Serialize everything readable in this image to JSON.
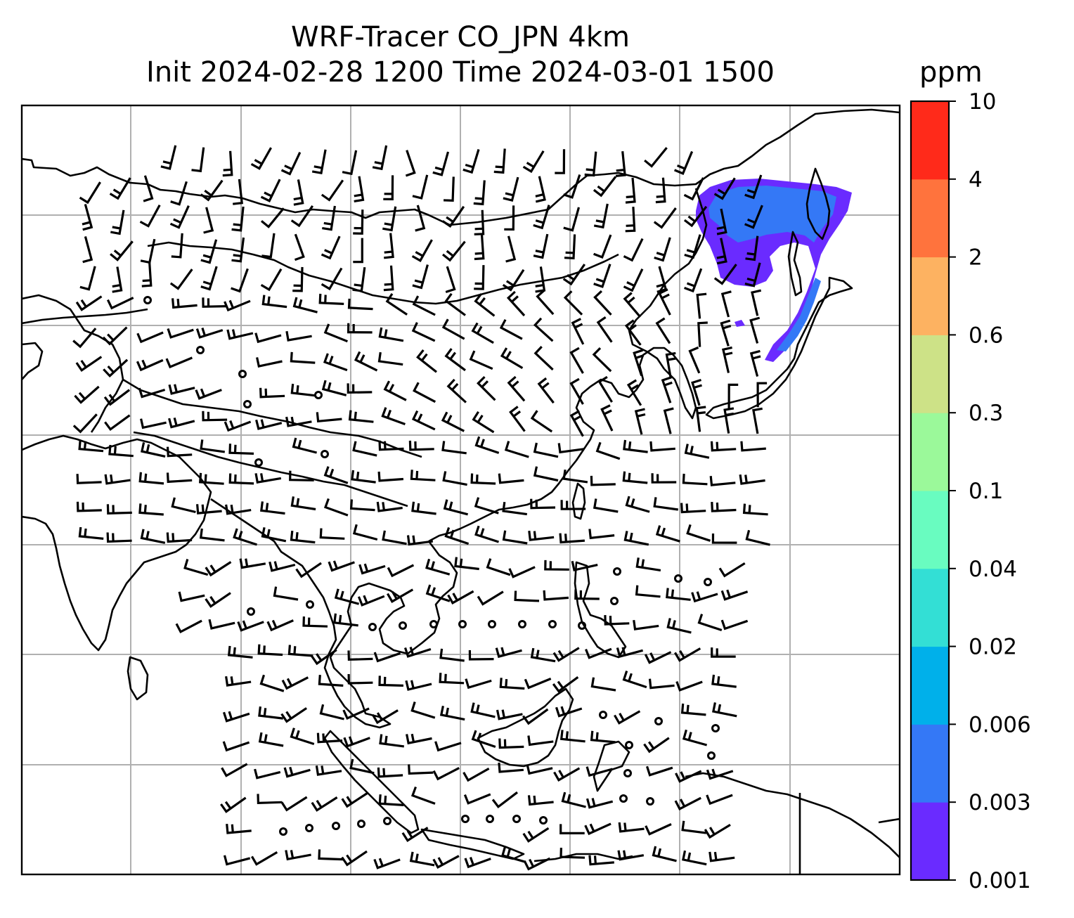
{
  "title": {
    "line1": "WRF-Tracer CO_JPN 4km",
    "line2": "Init 2024-02-28 1200 Time 2024-03-01 1500"
  },
  "colorbar": {
    "label": "ppm",
    "ticks": [
      "0.001",
      "0.003",
      "0.006",
      "0.02",
      "0.04",
      "0.1",
      "0.3",
      "0.6",
      "2",
      "4",
      "10"
    ],
    "colors": [
      "#6a2bff",
      "#3478f6",
      "#00b0ea",
      "#33dfd5",
      "#69fcc0",
      "#9bf99a",
      "#cde287",
      "#fdb261",
      "#ff733d",
      "#ff2a1a"
    ]
  },
  "map": {
    "plume_colors": [
      "#6a2bff",
      "#3478f6"
    ],
    "coast_color": "#000000",
    "grid_color": "#b0b0b0"
  }
}
